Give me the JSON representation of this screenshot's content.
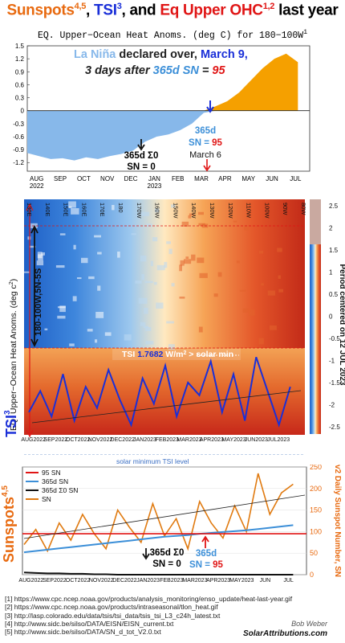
{
  "title": {
    "part1": "Sunspots",
    "part1_sup": "4,5",
    "sep1": ", ",
    "part2": "TSI",
    "part2_sup": "3",
    "sep2": ", and ",
    "part3": "Eq Upper OHC",
    "part3_sup": "1,2",
    "part4": " last year"
  },
  "subtitle": {
    "text": "EQ. Upper−Ocean Heat Anoms. (deg C) for 180−100W",
    "sup": "1"
  },
  "colors": {
    "orange": "#f5a000",
    "lightblue": "#87b8ea",
    "darkblue": "#1a2fd8",
    "red": "#e01515",
    "brandorange": "#e86a10"
  },
  "chart_data": [
    {
      "type": "area",
      "title": "EQ. Upper−Ocean Heat Anoms. (deg C) for 180−100W",
      "ylim": [
        -1.4,
        1.5
      ],
      "yticks": [
        "1.5",
        "1.2",
        "0.9",
        "0.6",
        "0.3",
        "0",
        "-0.3",
        "-0.6",
        "-0.9",
        "-1.2"
      ],
      "xticks": [
        "AUG\n2022",
        "SEP",
        "OCT",
        "NOV",
        "DEC",
        "JAN\n2023",
        "FEB",
        "MAR",
        "APR",
        "MAY",
        "JUN",
        "JUL"
      ],
      "x_months": [
        0,
        0.5,
        1,
        1.5,
        2,
        2.5,
        3,
        3.5,
        4,
        4.5,
        5,
        5.5,
        6,
        6.5,
        7,
        7.5,
        8,
        8.5,
        9,
        9.5,
        10,
        10.5,
        11,
        11.5
      ],
      "values": [
        -0.98,
        -1.05,
        -1.12,
        -1.1,
        -1.15,
        -1.08,
        -1.12,
        -1.05,
        -1.0,
        -0.92,
        -0.72,
        -0.6,
        -0.55,
        -0.45,
        -0.3,
        -0.05,
        0.1,
        0.22,
        0.42,
        0.7,
        0.98,
        1.2,
        1.32,
        1.12
      ],
      "annotations": {
        "la_nina_line1a": "La Niña",
        "la_nina_line1b": " declared over, ",
        "la_nina_line1c": "March 9,",
        "la_nina_line2a": "3 days after ",
        "la_nina_line2b": "365d SN",
        "la_nina_line2c": " = ",
        "la_nina_line2d": "95",
        "sn365": "365d",
        "sn_eq": "SN = ",
        "sn95": "95",
        "march6": "March 6",
        "sigma0_a": "365d Σ0",
        "sigma0_b": "SN = 0"
      }
    },
    {
      "type": "heatmap",
      "ylabel": "EQ. Upper−Ocean Heat Anoms. (deg c",
      "ylabel_sup": "2",
      "ylabel_end": ")",
      "band_label": "180-100W,5N-5S",
      "right_label": "Period centered on 12 JUL 2023",
      "lon_labels": [
        "80W",
        "90W",
        "100W",
        "110W",
        "120W",
        "130W",
        "140W",
        "150W",
        "160W",
        "170W",
        "180",
        "170E",
        "160E",
        "150E",
        "140E",
        "130E"
      ],
      "colorbar_ticks": [
        "2.5",
        "2",
        "1.5",
        "1",
        "0.5",
        "0",
        "-0.5",
        "-1",
        "-1.5",
        "-2",
        "-2.5"
      ],
      "time_labels": [
        "AUG2022",
        "SEP2022",
        "OCT2022",
        "NOV2022",
        "DEC2022",
        "JAN2023",
        "FEB2023",
        "MAR2023",
        "APR2023",
        "MAY2023",
        "JUN2023",
        "JUL2023"
      ]
    },
    {
      "type": "line",
      "name_label": "TSI",
      "name_sup": "3",
      "tsi_text": "TSI ",
      "tsi_value": "1.7682",
      "tsi_unit": " W/m",
      "tsi_unit_sup": "2",
      "tsi_suffix": " > solar min",
      "solar_min_label": "solar minimum TSI level",
      "x_months": [
        0,
        0.5,
        1,
        1.5,
        2,
        2.5,
        3,
        3.5,
        4,
        4.5,
        5,
        5.5,
        6,
        6.5,
        7,
        7.5,
        8,
        8.5,
        9,
        9.5,
        10,
        10.5,
        11,
        11.5
      ],
      "values": [
        0.4,
        0.9,
        0.3,
        1.3,
        0.2,
        1.0,
        0.5,
        1.4,
        0.7,
        0.1,
        1.2,
        0.6,
        1.5,
        0.3,
        1.1,
        0.8,
        1.6,
        0.4,
        1.3,
        0.2,
        1.7,
        0.9,
        0.1,
        1.0
      ]
    },
    {
      "type": "line",
      "ylabel_left": "Sunspots",
      "ylabel_left_sup": "4,5",
      "ylabel_right": "v2 Daily Sunspot Number, SN",
      "ylim": [
        0,
        250
      ],
      "yticks": [
        "250",
        "200",
        "150",
        "100",
        "50",
        "0"
      ],
      "xticks": [
        "AUG2022",
        "SEP2022",
        "OCT2022",
        "NOV2022",
        "DEC2022",
        "JAN2023",
        "FEB2023",
        "MAR2023",
        "APR2023",
        "MAY2023",
        "JUN",
        "JUL"
      ],
      "legend": [
        "95 SN",
        "365d SN",
        "365d Σ0 SN",
        "SN"
      ],
      "threshold": 95,
      "x_months": [
        0,
        0.5,
        1,
        1.5,
        2,
        2.5,
        3,
        3.5,
        4,
        4.5,
        5,
        5.5,
        6,
        6.5,
        7,
        7.5,
        8,
        8.5,
        9,
        9.5,
        10,
        10.5,
        11,
        11.5
      ],
      "series": [
        {
          "name": "365d SN",
          "values": [
            52,
            55,
            58,
            61,
            64,
            67,
            70,
            73,
            76,
            79,
            82,
            85,
            88,
            90,
            92,
            95,
            97,
            99,
            101,
            103,
            106,
            109,
            112,
            115
          ]
        },
        {
          "name": "SN",
          "values": [
            70,
            105,
            55,
            120,
            80,
            140,
            95,
            60,
            150,
            110,
            75,
            165,
            90,
            130,
            60,
            170,
            120,
            85,
            160,
            100,
            235,
            140,
            190,
            210
          ]
        },
        {
          "name": "365d Σ0 SN",
          "values": [
            5,
            4,
            3,
            3,
            2,
            2,
            1,
            1,
            0,
            0,
            0,
            0,
            0,
            0,
            0,
            0,
            0,
            0,
            0,
            0,
            0,
            0,
            0,
            0
          ]
        }
      ],
      "annotations": {
        "sigma0_a": "365d Σ0",
        "sigma0_b": "SN = 0",
        "sn365": "365d",
        "sn_eq": "SN = ",
        "sn95": "95"
      }
    }
  ],
  "references": [
    "[1] https://www.cpc.ncep.noaa.gov/products/analysis_monitoring/enso_update/heat-last-year.gif",
    "[2] https://www.cpc.ncep.noaa.gov/products/intraseasonal/tlon_heat.gif",
    "[3] http://lasp.colorado.edu/data/tsis/tsi_data/tsis_tsi_L3_c24h_latest.txt",
    "[4] http://www.sidc.be/silso/DATA/EISN/EISN_current.txt",
    "[5] http://www.sidc.be/silso/DATA/SN_d_tot_V2.0.txt"
  ],
  "author": "Bob Weber",
  "site": "SolarAttributions.com"
}
